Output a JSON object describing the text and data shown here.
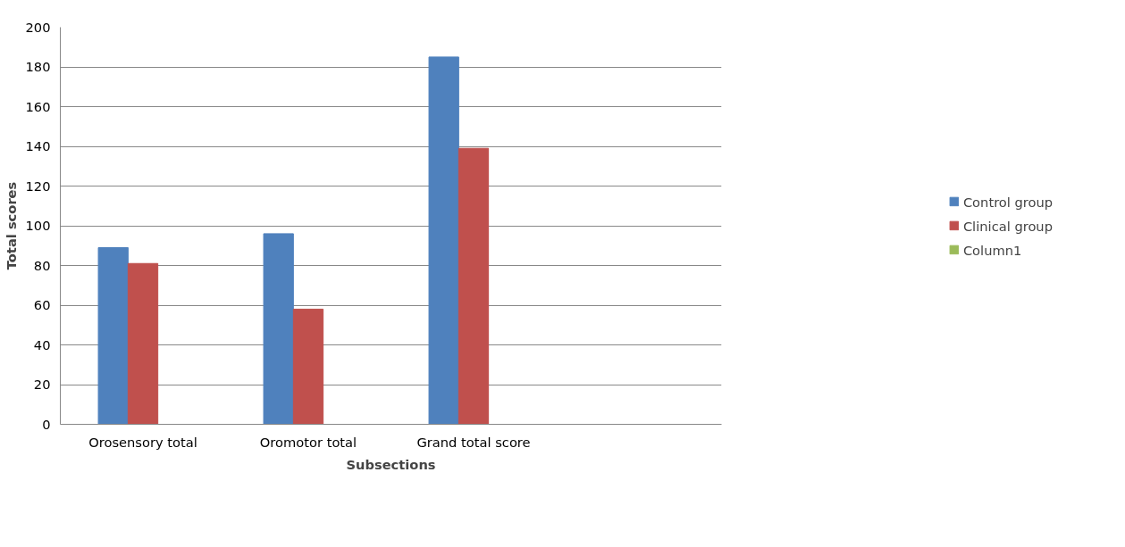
{
  "chart_data": {
    "type": "bar",
    "xlabel": "Subsections",
    "ylabel": "Total scores",
    "categories": [
      "Orosensory total",
      "Oromotor total",
      "Grand total score",
      null
    ],
    "series": [
      {
        "name": "Control group",
        "color": "#4f81bd",
        "values": [
          89,
          96,
          185,
          null
        ]
      },
      {
        "name": "Clinical group",
        "color": "#c0504d",
        "values": [
          81,
          58,
          139,
          null
        ]
      },
      {
        "name": "Column1",
        "color": "#9bbb59",
        "values": [
          null,
          null,
          null,
          null
        ]
      }
    ],
    "ylim": [
      0,
      200
    ],
    "yticks": [
      0,
      20,
      40,
      60,
      80,
      100,
      120,
      140,
      160,
      180,
      200
    ],
    "grid": "y",
    "legend": "right"
  }
}
